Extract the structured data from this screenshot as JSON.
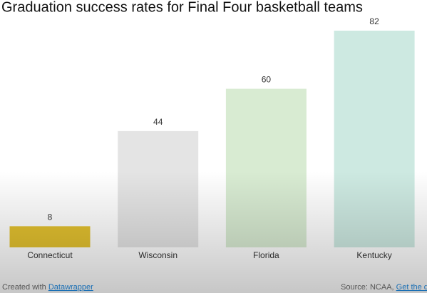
{
  "chart_data": {
    "type": "bar",
    "title": "Graduation success rates for Final Four basketball teams",
    "categories": [
      "Connecticut",
      "Wisconsin",
      "Florida",
      "Kentucky"
    ],
    "values": [
      8,
      44,
      60,
      82
    ],
    "colors": [
      "#e3c12f",
      "#e4e4e4",
      "#d8ebd2",
      "#cde9e1"
    ],
    "ylim": [
      0,
      82
    ]
  },
  "footer": {
    "credit": "Created with",
    "credit_link": "Datawrapper",
    "source": "Source: NCAA,",
    "source_link": "Get the d"
  }
}
